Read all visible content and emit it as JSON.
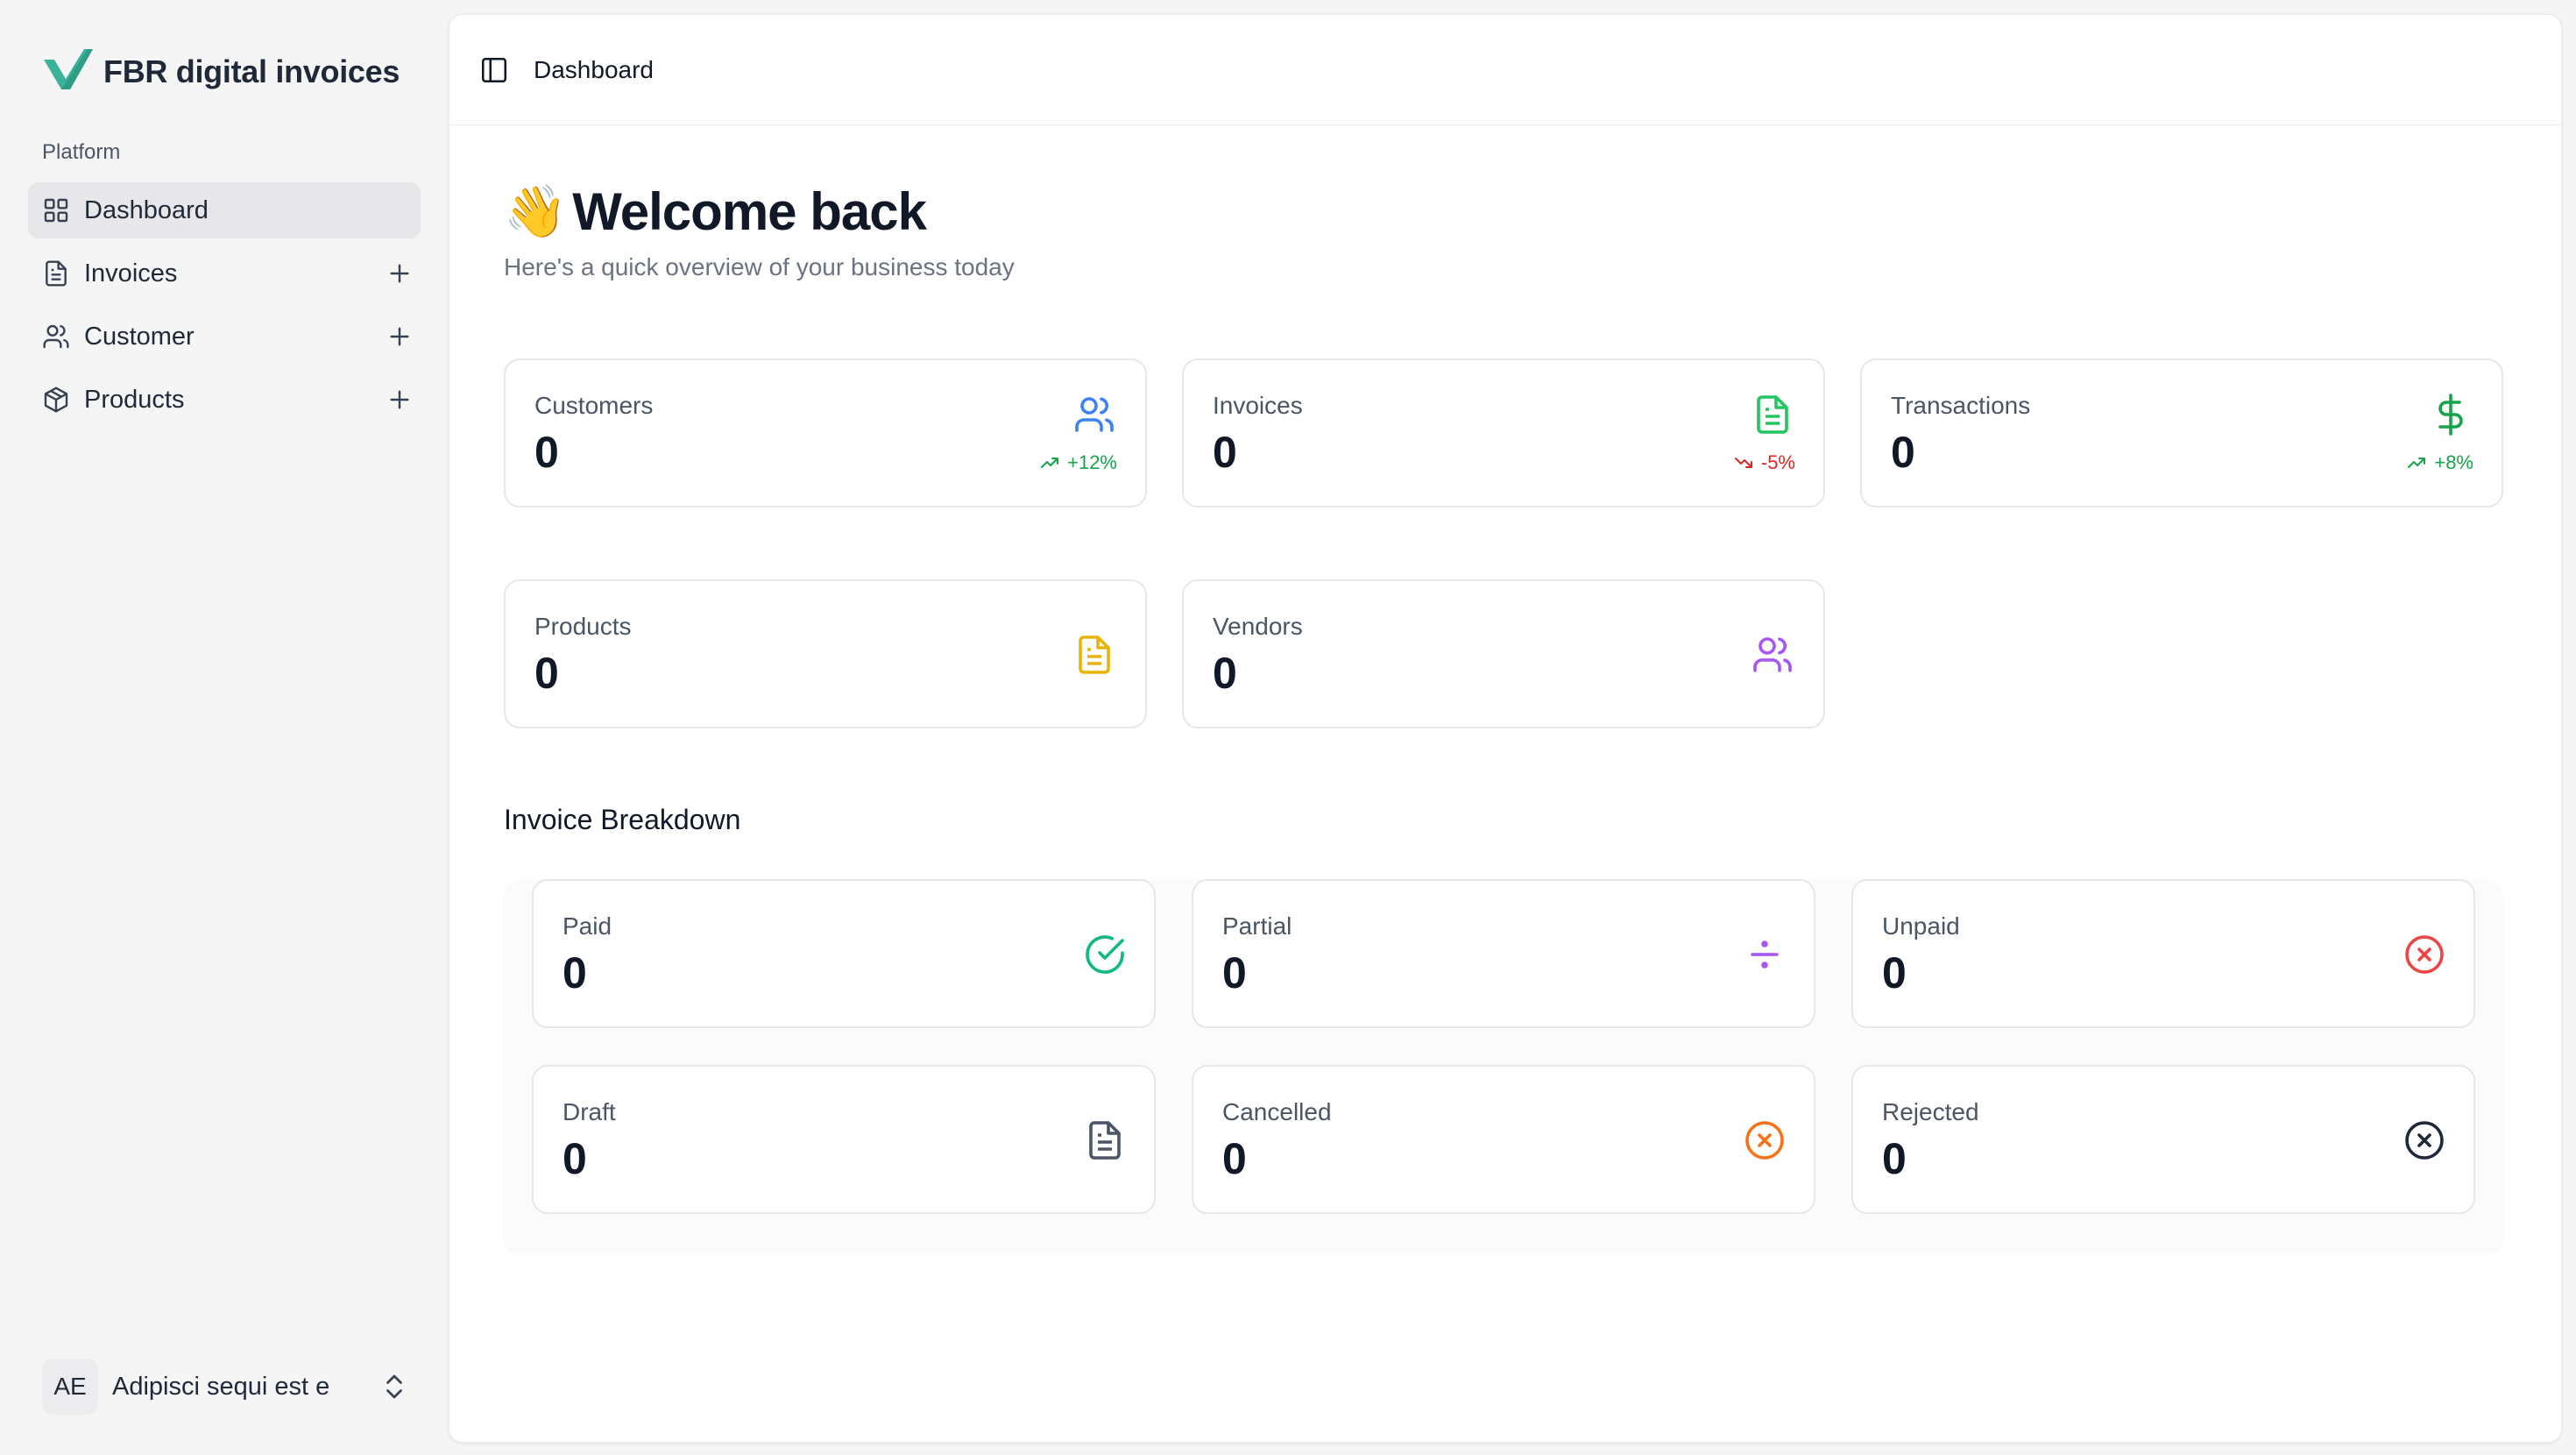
{
  "app": {
    "name": "FBR digital invoices"
  },
  "sidebar": {
    "group_label": "Platform",
    "items": [
      {
        "label": "Dashboard",
        "icon": "grid-icon",
        "active": true
      },
      {
        "label": "Invoices",
        "icon": "file-icon",
        "has_add": true
      },
      {
        "label": "Customer",
        "icon": "users-icon",
        "has_add": true
      },
      {
        "label": "Products",
        "icon": "package-icon",
        "has_add": true
      }
    ],
    "user": {
      "initials": "AE",
      "name": "Adipisci sequi est e"
    }
  },
  "header": {
    "breadcrumb": "Dashboard"
  },
  "welcome": {
    "emoji": "👋",
    "title": "Welcome back",
    "subtitle": "Here's a quick overview of your business today"
  },
  "stats": [
    {
      "label": "Customers",
      "value": "0",
      "icon": "users-icon",
      "color": "#3b82f6",
      "trend": "+12%",
      "trend_dir": "up"
    },
    {
      "label": "Invoices",
      "value": "0",
      "icon": "file-text-icon",
      "color": "#22c55e",
      "trend": "-5%",
      "trend_dir": "down"
    },
    {
      "label": "Transactions",
      "value": "0",
      "icon": "dollar-icon",
      "color": "#16a34a",
      "trend": "+8%",
      "trend_dir": "up"
    },
    {
      "label": "Products",
      "value": "0",
      "icon": "file-text-icon",
      "color": "#eab308"
    },
    {
      "label": "Vendors",
      "value": "0",
      "icon": "users-icon",
      "color": "#a855f7"
    }
  ],
  "breakdown": {
    "title": "Invoice Breakdown",
    "items": [
      {
        "label": "Paid",
        "value": "0",
        "icon": "check-circle-icon",
        "color": "#10b981"
      },
      {
        "label": "Partial",
        "value": "0",
        "icon": "divide-icon",
        "color": "#a855f7"
      },
      {
        "label": "Unpaid",
        "value": "0",
        "icon": "x-circle-icon",
        "color": "#ef4444"
      },
      {
        "label": "Draft",
        "value": "0",
        "icon": "file-text-icon",
        "color": "#4b5563"
      },
      {
        "label": "Cancelled",
        "value": "0",
        "icon": "x-circle-icon",
        "color": "#f97316"
      },
      {
        "label": "Rejected",
        "value": "0",
        "icon": "x-circle-icon",
        "color": "#1f2937"
      }
    ]
  }
}
